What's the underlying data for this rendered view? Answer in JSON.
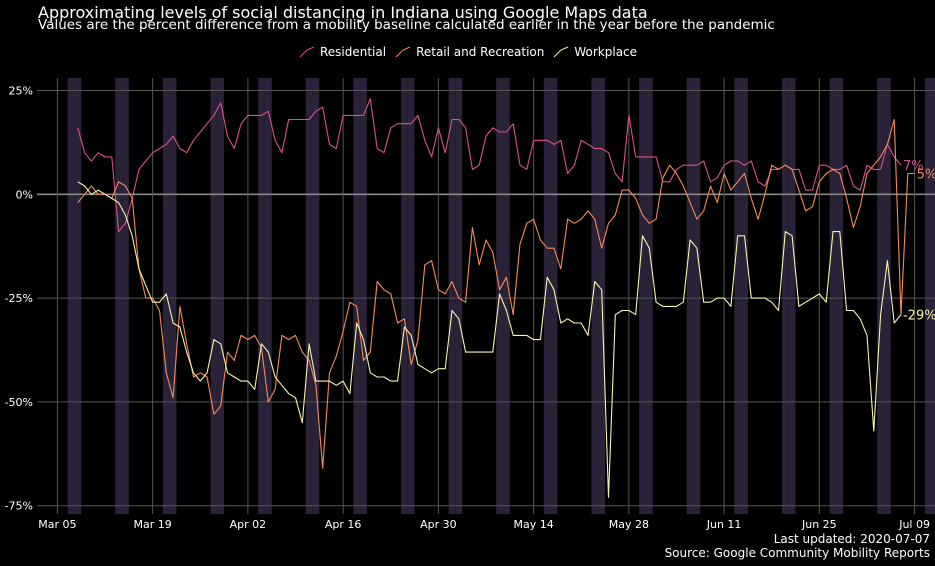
{
  "header": {
    "title": "Approximating levels of social distancing in Indiana using Google Maps data",
    "subtitle": "Values are the percent difference from a mobility baseline calculated earlier in the year before the pandemic"
  },
  "footer": {
    "updated": "Last updated: 2020-07-07",
    "source": "Source: Google Community Mobility Reports"
  },
  "colors": {
    "background": "#000000",
    "grid": "#555555",
    "weekend_band": "#2a2238",
    "Residential": "#d9508a",
    "Retail and Recreation": "#f58a5c",
    "Workplace": "#f8f3b0"
  },
  "chart_data": {
    "type": "line",
    "x_start": "2020-03-08",
    "x_end": "2020-07-06",
    "xlim": [
      "2020-03-02",
      "2020-07-12"
    ],
    "ylim": [
      -77,
      28
    ],
    "y_ticks": [
      25,
      0,
      -25,
      -50,
      -75
    ],
    "y_tick_labels": [
      "25%",
      "0%",
      "-25%",
      "-50%",
      "-75%"
    ],
    "x_ticks": [
      "2020-03-05",
      "2020-03-19",
      "2020-04-02",
      "2020-04-16",
      "2020-04-30",
      "2020-05-14",
      "2020-05-28",
      "2020-06-11",
      "2020-06-25",
      "2020-07-09"
    ],
    "x_tick_labels": [
      "Mar 05",
      "Mar 19",
      "Apr 02",
      "Apr 16",
      "Apr 30",
      "May 14",
      "May 28",
      "Jun 11",
      "Jun 25",
      "Jul 09"
    ],
    "grid": true,
    "weekend_shading": true,
    "legend_position": "top",
    "series": [
      {
        "name": "Residential",
        "end_label": "7%",
        "values": [
          16,
          10,
          8,
          10,
          9,
          9,
          -9,
          -7,
          -1,
          6,
          8,
          10,
          11,
          12,
          14,
          11,
          10,
          13,
          15,
          17,
          19,
          22,
          14,
          11,
          17,
          19,
          19,
          19,
          20,
          13,
          10,
          18,
          18,
          18,
          18,
          20,
          21,
          12,
          11,
          19,
          19,
          19,
          19,
          23,
          11,
          10,
          16,
          17,
          17,
          17,
          19,
          13,
          9,
          16,
          10,
          18,
          18,
          16,
          6,
          7,
          14,
          16,
          15,
          15,
          17,
          7,
          6,
          13,
          13,
          13,
          12,
          13,
          5,
          7,
          13,
          12,
          11,
          11,
          10,
          5,
          3,
          19,
          9,
          9,
          9,
          9,
          3,
          3,
          6,
          7,
          7,
          7,
          8,
          3,
          4,
          7,
          8,
          8,
          7,
          8,
          3,
          2,
          6,
          6,
          7,
          6,
          6,
          1,
          1,
          7,
          7,
          6,
          6,
          7,
          2,
          1,
          7,
          6,
          6,
          12,
          9,
          7
        ]
      },
      {
        "name": "Retail and Recreation",
        "end_label": "5%",
        "values": [
          -2,
          0,
          2,
          0,
          0,
          -1,
          3,
          2,
          -1,
          -18,
          -25,
          -25,
          -28,
          -43,
          -49,
          -27,
          -36,
          -44,
          -43,
          -44,
          -53,
          -51,
          -38,
          -40,
          -34,
          -35,
          -34,
          -37,
          -50,
          -47,
          -34,
          -35,
          -34,
          -38,
          -40,
          -46,
          -66,
          -43,
          -39,
          -33,
          -26,
          -27,
          -40,
          -38,
          -21,
          -23,
          -24,
          -31,
          -30,
          -41,
          -35,
          -17,
          -16,
          -23,
          -24,
          -21,
          -25,
          -26,
          -8,
          -17,
          -11,
          -14,
          -23,
          -20,
          -29,
          -12,
          -7,
          -6,
          -11,
          -13,
          -13,
          -18,
          -6,
          -7,
          -6,
          -4,
          -6,
          -13,
          -7,
          -5,
          1,
          1,
          -1,
          -5,
          -7,
          -6,
          4,
          7,
          5,
          2,
          -2,
          -6,
          -4,
          2,
          -2,
          5,
          1,
          3,
          5,
          -1,
          -6,
          0,
          7,
          6,
          7,
          6,
          1,
          -4,
          -3,
          3,
          5,
          6,
          5,
          -1,
          -8,
          -3,
          5,
          7,
          9,
          12,
          18,
          -29,
          5,
          5
        ]
      },
      {
        "name": "Workplace",
        "end_label": "-29%",
        "values": [
          3,
          2,
          0,
          1,
          0,
          -1,
          -2,
          -5,
          -10,
          -18,
          -22,
          -26,
          -26,
          -24,
          -31,
          -32,
          -38,
          -43,
          -45,
          -43,
          -35,
          -36,
          -43,
          -44,
          -45,
          -45,
          -47,
          -36,
          -38,
          -44,
          -46,
          -48,
          -49,
          -55,
          -36,
          -45,
          -45,
          -45,
          -46,
          -45,
          -48,
          -31,
          -35,
          -43,
          -44,
          -44,
          -45,
          -45,
          -32,
          -34,
          -41,
          -42,
          -43,
          -42,
          -42,
          -28,
          -30,
          -38,
          -38,
          -38,
          -38,
          -38,
          -24,
          -28,
          -34,
          -34,
          -34,
          -35,
          -35,
          -20,
          -23,
          -31,
          -30,
          -31,
          -31,
          -34,
          -21,
          -23,
          -73,
          -29,
          -28,
          -28,
          -29,
          -10,
          -13,
          -26,
          -27,
          -27,
          -27,
          -26,
          -11,
          -13,
          -26,
          -26,
          -25,
          -25,
          -27,
          -10,
          -10,
          -25,
          -25,
          -25,
          -26,
          -28,
          -9,
          -10,
          -27,
          -26,
          -25,
          -24,
          -26,
          -9,
          -9,
          -28,
          -28,
          -30,
          -34,
          -57,
          -29,
          -16,
          -31,
          -29
        ]
      }
    ]
  }
}
